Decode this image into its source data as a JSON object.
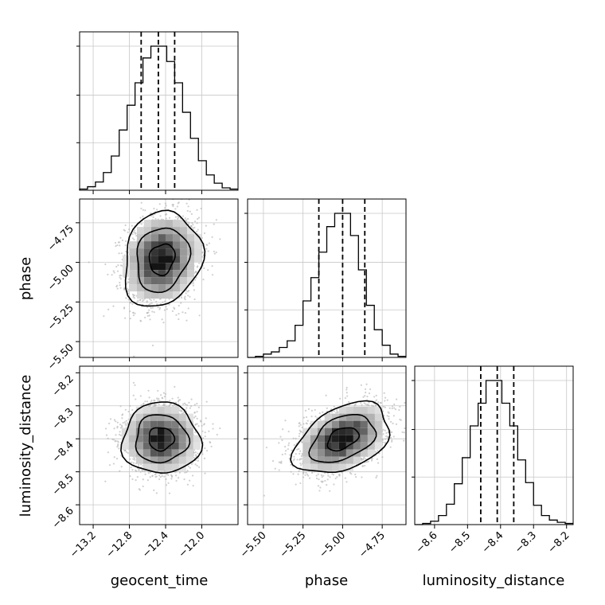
{
  "chart_data": {
    "type": "corner",
    "parameters": [
      "geocent_time",
      "phase",
      "luminosity_distance"
    ],
    "axis_labels": {
      "x": [
        "geocent_time",
        "phase",
        "luminosity_distance"
      ],
      "y": [
        "phase",
        "luminosity_distance"
      ]
    },
    "ranges": {
      "geocent_time": [
        -13.35,
        -11.6
      ],
      "phase": [
        -5.6,
        -4.6
      ],
      "luminosity_distance": [
        -8.66,
        -8.18
      ]
    },
    "ticks": {
      "geocent_time": {
        "values": [
          -13.2,
          -12.8,
          -12.4,
          -12.0
        ],
        "labels": [
          "−13.2",
          "−12.8",
          "−12.4",
          "−12.0"
        ]
      },
      "phase": {
        "values": [
          -5.5,
          -5.25,
          -5.0,
          -4.75
        ],
        "labels": [
          "−5.50",
          "−5.25",
          "−5.00",
          "−4.75"
        ]
      },
      "luminosity_distance": {
        "values": [
          -8.6,
          -8.5,
          -8.4,
          -8.3,
          -8.2
        ],
        "labels": [
          "−8.6",
          "−8.5",
          "−8.4",
          "−8.3",
          "−8.2"
        ]
      }
    },
    "y_ticks": {
      "phase": {
        "values": [
          -5.5,
          -5.25,
          -5.0,
          -4.75
        ],
        "labels": [
          "−5.50",
          "−5.25",
          "−5.00",
          "−4.75"
        ]
      },
      "luminosity_distance": {
        "values": [
          -8.6,
          -8.5,
          -8.4,
          -8.3,
          -8.2
        ],
        "labels": [
          "−8.6",
          "−8.5",
          "−8.4",
          "−8.3",
          "−8.2"
        ]
      }
    },
    "histograms": [
      {
        "param": "geocent_time",
        "bin_start": -13.35,
        "bin_width": 0.0875,
        "counts": [
          1,
          3,
          7,
          15,
          29,
          51,
          72,
          91,
          112,
          122,
          122,
          109,
          91,
          66,
          44,
          25,
          13,
          6,
          2,
          1
        ],
        "quantiles": [
          -12.67,
          -12.48,
          -12.3
        ]
      },
      {
        "param": "phase",
        "bin_start": -5.6,
        "bin_width": 0.05,
        "counts": [
          0,
          1,
          3,
          5,
          9,
          15,
          29,
          51,
          72,
          95,
          118,
          130,
          130,
          110,
          79,
          47,
          25,
          11,
          3,
          1
        ],
        "quantiles": [
          -5.15,
          -5.0,
          -4.86
        ]
      },
      {
        "param": "luminosity_distance",
        "bin_start": -8.66,
        "bin_width": 0.024,
        "counts": [
          0,
          1,
          3,
          8,
          18,
          36,
          59,
          87,
          107,
          127,
          127,
          107,
          87,
          57,
          37,
          17,
          8,
          4,
          2,
          1
        ],
        "quantiles": [
          -8.46,
          -8.41,
          -8.36
        ]
      }
    ],
    "pairs": [
      {
        "x": "geocent_time",
        "y": "phase",
        "center": [
          -12.44,
          -4.98
        ],
        "sigma": [
          0.2,
          0.14
        ],
        "corr": 0.15
      },
      {
        "x": "geocent_time",
        "y": "luminosity_distance",
        "center": [
          -12.45,
          -8.4
        ],
        "sigma": [
          0.2,
          0.05
        ],
        "corr": 0.0
      },
      {
        "x": "phase",
        "y": "luminosity_distance",
        "center": [
          -5.0,
          -8.4
        ],
        "sigma": [
          0.14,
          0.05
        ],
        "corr": 0.4
      }
    ],
    "grid": true,
    "colors": {
      "hist": "#000000",
      "contour": "#000000",
      "density": "#000000",
      "points": "#b0b0b0",
      "grid": "#c8c8c8"
    }
  }
}
